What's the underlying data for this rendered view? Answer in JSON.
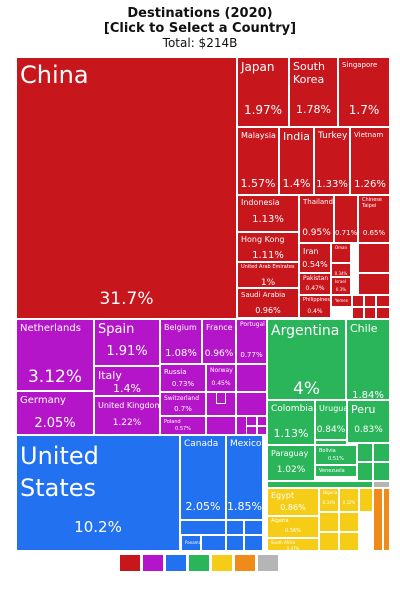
{
  "header": {
    "title": "Destinations (2020)",
    "subtitle": "[Click to Select a Country]",
    "total": "Total: $214B"
  },
  "colors": {
    "asia": "#c8161d",
    "europe": "#b515c9",
    "south_america": "#2bb55a",
    "north_america": "#2171f0",
    "africa": "#f5cd16",
    "oceania": "#f08a18",
    "other": "#b5b5b5"
  },
  "legend": [
    "asia",
    "europe",
    "north_america",
    "south_america",
    "africa",
    "oceania",
    "other"
  ],
  "chart_data": {
    "type": "treemap",
    "title": "Destinations (2020)",
    "subtitle": "[Click to Select a Country]",
    "total": "Total: $214B",
    "items": [
      {
        "name": "China",
        "value": 31.7,
        "pct": "31.7%",
        "region": "asia"
      },
      {
        "name": "Japan",
        "value": 1.97,
        "pct": "1.97%",
        "region": "asia"
      },
      {
        "name": "South Korea",
        "value": 1.78,
        "pct": "1.78%",
        "region": "asia"
      },
      {
        "name": "Singapore",
        "value": 1.7,
        "pct": "1.7%",
        "region": "asia"
      },
      {
        "name": "Malaysia",
        "value": 1.57,
        "pct": "1.57%",
        "region": "asia"
      },
      {
        "name": "India",
        "value": 1.4,
        "pct": "1.4%",
        "region": "asia"
      },
      {
        "name": "Turkey",
        "value": 1.33,
        "pct": "1.33%",
        "region": "asia"
      },
      {
        "name": "Vietnam",
        "value": 1.26,
        "pct": "1.26%",
        "region": "asia"
      },
      {
        "name": "Indonesia",
        "value": 1.13,
        "pct": "1.13%",
        "region": "asia"
      },
      {
        "name": "Thailand",
        "value": 0.95,
        "pct": "0.95%",
        "region": "asia"
      },
      {
        "name": "",
        "value": 0.71,
        "pct": "0.71%",
        "region": "asia"
      },
      {
        "name": "Chinese Taipei",
        "value": 0.65,
        "pct": "0.65%",
        "region": "asia"
      },
      {
        "name": "Hong Kong",
        "value": 1.11,
        "pct": "1.11%",
        "region": "asia"
      },
      {
        "name": "Iran",
        "value": 0.54,
        "pct": "0.54%",
        "region": "asia"
      },
      {
        "name": "Oman",
        "value": null,
        "pct": "",
        "region": "asia"
      },
      {
        "name": "",
        "value": 0.34,
        "pct": "0.34%",
        "region": "asia"
      },
      {
        "name": "United Arab Emirates",
        "value": 1,
        "pct": "1%",
        "region": "asia"
      },
      {
        "name": "Pakistan",
        "value": 0.47,
        "pct": "0.47%",
        "region": "asia"
      },
      {
        "name": "Israel",
        "value": 0.3,
        "pct": "0.3%",
        "region": "asia"
      },
      {
        "name": "Saudi Arabia",
        "value": 0.96,
        "pct": "0.96%",
        "region": "asia"
      },
      {
        "name": "Philippines",
        "value": 0.4,
        "pct": "0.4%",
        "region": "asia"
      },
      {
        "name": "Yemen",
        "value": null,
        "pct": "",
        "region": "asia"
      },
      {
        "name": "Netherlands",
        "value": 3.12,
        "pct": "3.12%",
        "region": "europe"
      },
      {
        "name": "Germany",
        "value": 2.05,
        "pct": "2.05%",
        "region": "europe"
      },
      {
        "name": "Spain",
        "value": 1.91,
        "pct": "1.91%",
        "region": "europe"
      },
      {
        "name": "Italy",
        "value": 1.4,
        "pct": "1.4%",
        "region": "europe"
      },
      {
        "name": "United Kingdom",
        "value": 1.22,
        "pct": "1.22%",
        "region": "europe"
      },
      {
        "name": "Belgium",
        "value": 1.08,
        "pct": "1.08%",
        "region": "europe"
      },
      {
        "name": "France",
        "value": 0.96,
        "pct": "0.96%",
        "region": "europe"
      },
      {
        "name": "Portugal",
        "value": 0.77,
        "pct": "0.77%",
        "region": "europe"
      },
      {
        "name": "Russia",
        "value": 0.73,
        "pct": "0.73%",
        "region": "europe"
      },
      {
        "name": "Norway",
        "value": 0.45,
        "pct": "0.45%",
        "region": "europe"
      },
      {
        "name": "Switzerland",
        "value": 0.7,
        "pct": "0.7%",
        "region": "europe"
      },
      {
        "name": "Poland",
        "value": 0.57,
        "pct": "0.57%",
        "region": "europe"
      },
      {
        "name": "United States",
        "value": 10.2,
        "pct": "10.2%",
        "region": "north_america"
      },
      {
        "name": "Canada",
        "value": 2.05,
        "pct": "2.05%",
        "region": "north_america"
      },
      {
        "name": "Mexico",
        "value": 1.85,
        "pct": "1.85%",
        "region": "north_america"
      },
      {
        "name": "Panama",
        "value": null,
        "pct": "",
        "region": "north_america"
      },
      {
        "name": "Argentina",
        "value": 4,
        "pct": "4%",
        "region": "south_america"
      },
      {
        "name": "Chile",
        "value": 1.84,
        "pct": "1.84%",
        "region": "south_america"
      },
      {
        "name": "Colombia",
        "value": 1.13,
        "pct": "1.13%",
        "region": "south_america"
      },
      {
        "name": "Uruguay",
        "value": 0.84,
        "pct": "0.84%",
        "region": "south_america"
      },
      {
        "name": "Peru",
        "value": 0.83,
        "pct": "0.83%",
        "region": "south_america"
      },
      {
        "name": "Paraguay",
        "value": 1.02,
        "pct": "1.02%",
        "region": "south_america"
      },
      {
        "name": "Bolivia",
        "value": 0.51,
        "pct": "0.51%",
        "region": "south_america"
      },
      {
        "name": "Venezuela",
        "value": null,
        "pct": "",
        "region": "south_america"
      },
      {
        "name": "Egypt",
        "value": 0.86,
        "pct": "0.86%",
        "region": "africa"
      },
      {
        "name": "Nigeria",
        "value": 0.33,
        "pct": "0.33%",
        "region": "africa"
      },
      {
        "name": "",
        "value": 0.32,
        "pct": "0.32%",
        "region": "africa"
      },
      {
        "name": "Algeria",
        "value": 0.56,
        "pct": "0.56%",
        "region": "africa"
      },
      {
        "name": "South Africa",
        "value": 0.47,
        "pct": "0.47%",
        "region": "africa"
      }
    ]
  }
}
